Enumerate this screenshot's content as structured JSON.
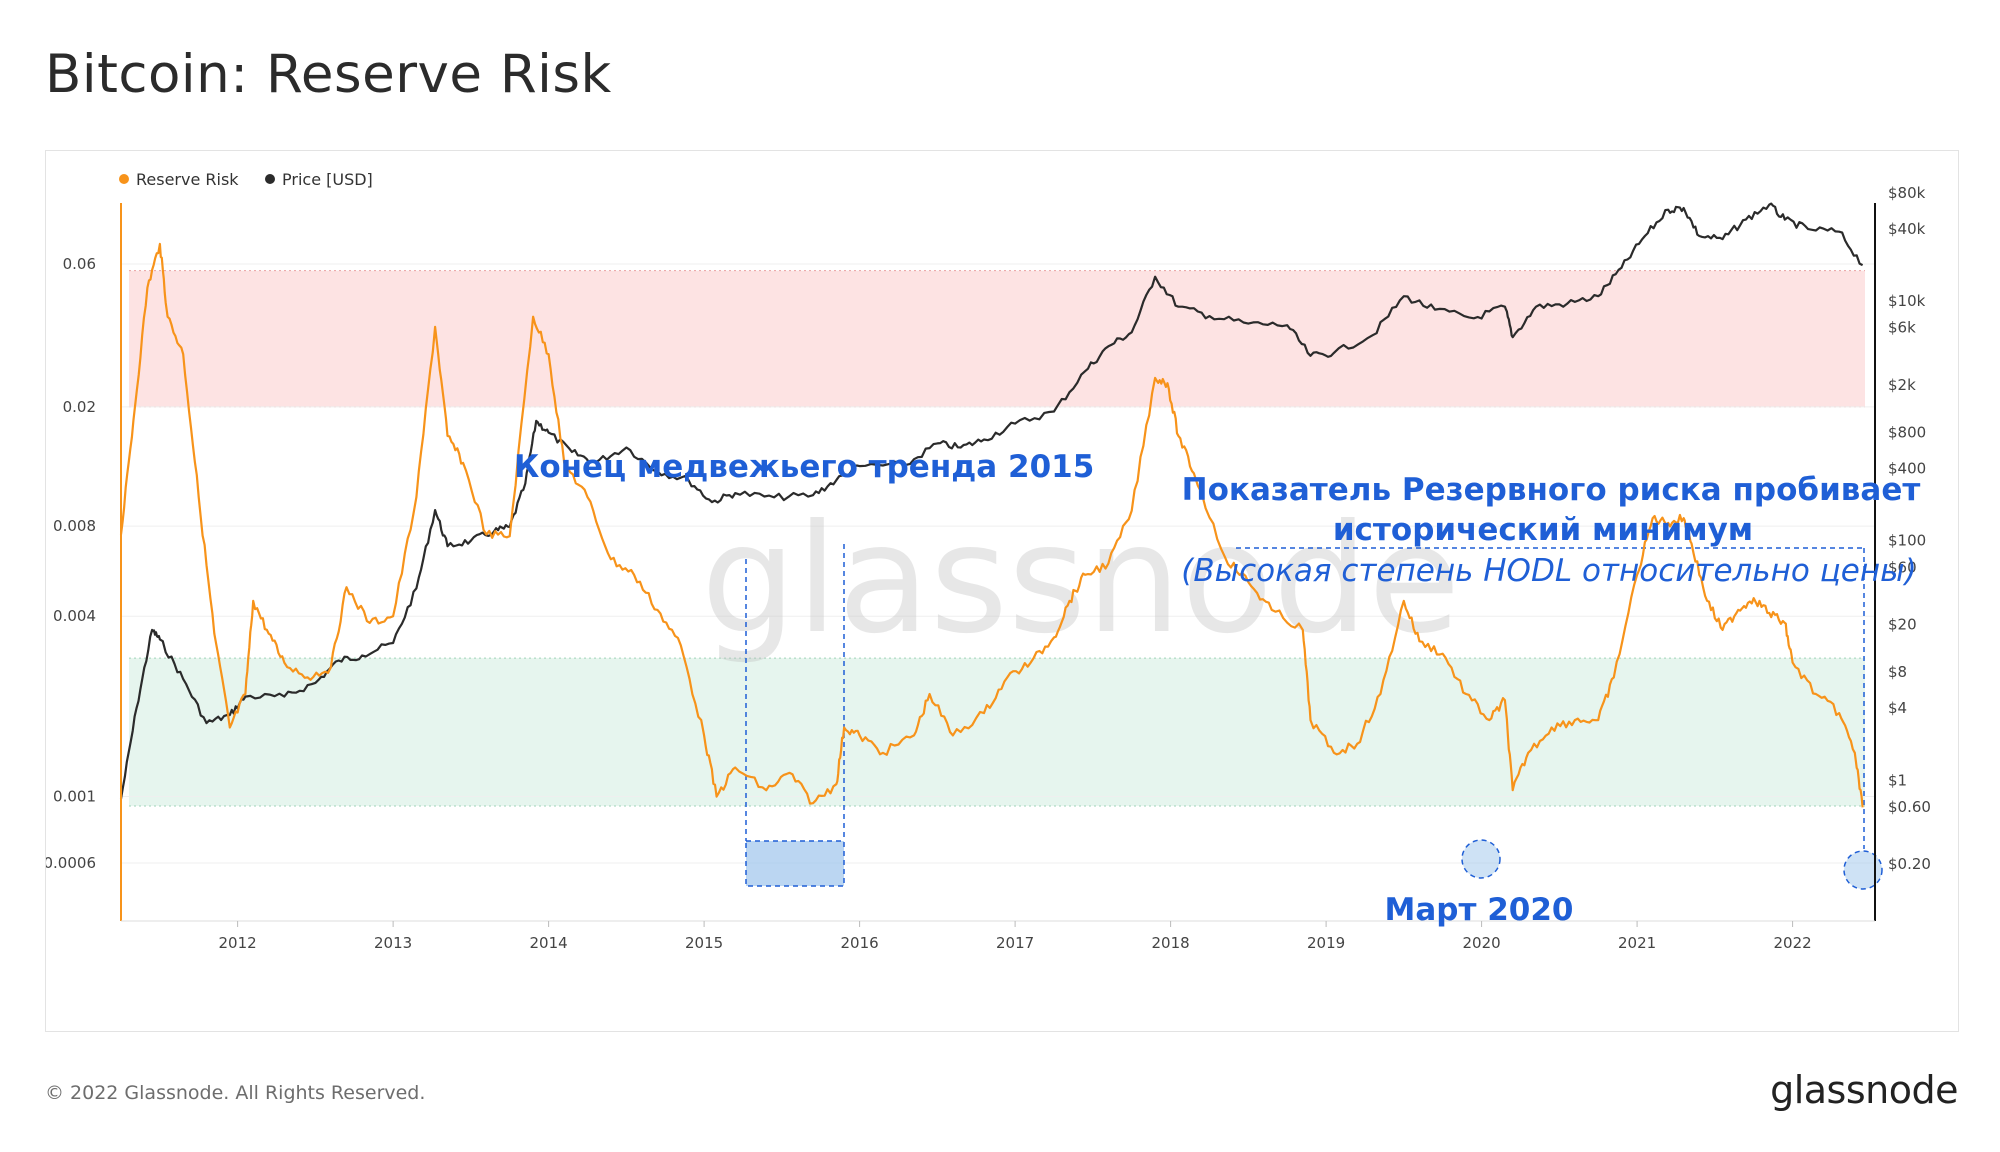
{
  "title": "Bitcoin: Reserve Risk",
  "footer": {
    "copyright": "© 2022 Glassnode. All Rights Reserved.",
    "logo": "glassnode"
  },
  "watermark": "glassnode",
  "colors": {
    "reserve_risk": "#f7931a",
    "price": "#2b2b2b",
    "annotation": "#1f5fd6",
    "red_band": "#fde3e3",
    "green_band": "#e6f5ee"
  },
  "chart_data": {
    "type": "line",
    "series": [
      {
        "name": "Reserve Risk",
        "axis": "left",
        "points": [
          [
            2011.25,
            0.0075
          ],
          [
            2011.33,
            0.018
          ],
          [
            2011.42,
            0.05
          ],
          [
            2011.5,
            0.07
          ],
          [
            2011.55,
            0.04
          ],
          [
            2011.65,
            0.03
          ],
          [
            2011.75,
            0.01
          ],
          [
            2011.85,
            0.0035
          ],
          [
            2011.95,
            0.0017
          ],
          [
            2012.05,
            0.0022
          ],
          [
            2012.1,
            0.0045
          ],
          [
            2012.2,
            0.0035
          ],
          [
            2012.3,
            0.0028
          ],
          [
            2012.45,
            0.0025
          ],
          [
            2012.6,
            0.0027
          ],
          [
            2012.7,
            0.005
          ],
          [
            2012.85,
            0.0038
          ],
          [
            2013.0,
            0.004
          ],
          [
            2013.15,
            0.01
          ],
          [
            2013.27,
            0.037
          ],
          [
            2013.35,
            0.016
          ],
          [
            2013.45,
            0.013
          ],
          [
            2013.6,
            0.0075
          ],
          [
            2013.75,
            0.0074
          ],
          [
            2013.9,
            0.04
          ],
          [
            2014.0,
            0.03
          ],
          [
            2014.1,
            0.013
          ],
          [
            2014.25,
            0.01
          ],
          [
            2014.4,
            0.0062
          ],
          [
            2014.55,
            0.0055
          ],
          [
            2014.7,
            0.0042
          ],
          [
            2014.85,
            0.0032
          ],
          [
            2015.0,
            0.0016
          ],
          [
            2015.08,
            0.001
          ],
          [
            2015.2,
            0.00125
          ],
          [
            2015.4,
            0.00105
          ],
          [
            2015.55,
            0.0012
          ],
          [
            2015.7,
            0.00095
          ],
          [
            2015.85,
            0.0011
          ],
          [
            2015.9,
            0.0017
          ],
          [
            2016.0,
            0.0016
          ],
          [
            2016.15,
            0.0014
          ],
          [
            2016.35,
            0.0016
          ],
          [
            2016.45,
            0.0022
          ],
          [
            2016.6,
            0.0016
          ],
          [
            2016.8,
            0.0019
          ],
          [
            2016.95,
            0.0025
          ],
          [
            2017.1,
            0.0028
          ],
          [
            2017.25,
            0.0034
          ],
          [
            2017.35,
            0.0045
          ],
          [
            2017.45,
            0.0055
          ],
          [
            2017.6,
            0.006
          ],
          [
            2017.75,
            0.009
          ],
          [
            2017.9,
            0.025
          ],
          [
            2017.98,
            0.024
          ],
          [
            2018.05,
            0.016
          ],
          [
            2018.15,
            0.012
          ],
          [
            2018.35,
            0.0063
          ],
          [
            2018.5,
            0.0052
          ],
          [
            2018.65,
            0.0042
          ],
          [
            2018.85,
            0.0036
          ],
          [
            2018.9,
            0.0018
          ],
          [
            2019.05,
            0.0014
          ],
          [
            2019.2,
            0.0015
          ],
          [
            2019.35,
            0.0022
          ],
          [
            2019.5,
            0.0045
          ],
          [
            2019.6,
            0.0033
          ],
          [
            2019.75,
            0.003
          ],
          [
            2019.9,
            0.0022
          ],
          [
            2020.05,
            0.0018
          ],
          [
            2020.15,
            0.0021
          ],
          [
            2020.2,
            0.00105
          ],
          [
            2020.3,
            0.0014
          ],
          [
            2020.45,
            0.0017
          ],
          [
            2020.6,
            0.0018
          ],
          [
            2020.75,
            0.0018
          ],
          [
            2020.85,
            0.0025
          ],
          [
            2021.0,
            0.0055
          ],
          [
            2021.1,
            0.0085
          ],
          [
            2021.2,
            0.0082
          ],
          [
            2021.3,
            0.0085
          ],
          [
            2021.35,
            0.007
          ],
          [
            2021.45,
            0.0045
          ],
          [
            2021.55,
            0.0036
          ],
          [
            2021.65,
            0.0042
          ],
          [
            2021.75,
            0.0046
          ],
          [
            2021.85,
            0.0041
          ],
          [
            2021.95,
            0.0038
          ],
          [
            2022.0,
            0.0028
          ],
          [
            2022.15,
            0.0022
          ],
          [
            2022.3,
            0.0019
          ],
          [
            2022.4,
            0.0014
          ],
          [
            2022.45,
            0.00092
          ]
        ]
      },
      {
        "name": "Price [USD]",
        "axis": "right",
        "points": [
          [
            2011.25,
            0.7
          ],
          [
            2011.35,
            4
          ],
          [
            2011.45,
            18
          ],
          [
            2011.5,
            15
          ],
          [
            2011.65,
            7
          ],
          [
            2011.8,
            3
          ],
          [
            2011.95,
            3.5
          ],
          [
            2012.05,
            5
          ],
          [
            2012.3,
            5
          ],
          [
            2012.5,
            6.5
          ],
          [
            2012.65,
            10
          ],
          [
            2012.8,
            11
          ],
          [
            2013.0,
            14
          ],
          [
            2013.15,
            40
          ],
          [
            2013.27,
            180
          ],
          [
            2013.35,
            90
          ],
          [
            2013.5,
            100
          ],
          [
            2013.65,
            120
          ],
          [
            2013.75,
            130
          ],
          [
            2013.85,
            300
          ],
          [
            2013.92,
            1000
          ],
          [
            2014.0,
            800
          ],
          [
            2014.15,
            550
          ],
          [
            2014.3,
            450
          ],
          [
            2014.5,
            600
          ],
          [
            2014.7,
            380
          ],
          [
            2014.9,
            320
          ],
          [
            2015.05,
            210
          ],
          [
            2015.2,
            250
          ],
          [
            2015.45,
            230
          ],
          [
            2015.7,
            240
          ],
          [
            2015.85,
            320
          ],
          [
            2016.0,
            420
          ],
          [
            2016.3,
            430
          ],
          [
            2016.5,
            650
          ],
          [
            2016.65,
            600
          ],
          [
            2016.8,
            700
          ],
          [
            2017.0,
            950
          ],
          [
            2017.25,
            1200
          ],
          [
            2017.45,
            2600
          ],
          [
            2017.6,
            4200
          ],
          [
            2017.75,
            5500
          ],
          [
            2017.9,
            16000
          ],
          [
            2018.05,
            9000
          ],
          [
            2018.25,
            7500
          ],
          [
            2018.5,
            6500
          ],
          [
            2018.75,
            6300
          ],
          [
            2018.9,
            3500
          ],
          [
            2019.05,
            3700
          ],
          [
            2019.3,
            5200
          ],
          [
            2019.5,
            11000
          ],
          [
            2019.7,
            8500
          ],
          [
            2019.95,
            7200
          ],
          [
            2020.15,
            9000
          ],
          [
            2020.2,
            5000
          ],
          [
            2020.35,
            9000
          ],
          [
            2020.55,
            9500
          ],
          [
            2020.75,
            11000
          ],
          [
            2020.9,
            19000
          ],
          [
            2021.05,
            35000
          ],
          [
            2021.2,
            58000
          ],
          [
            2021.3,
            60000
          ],
          [
            2021.4,
            35000
          ],
          [
            2021.55,
            33000
          ],
          [
            2021.7,
            48000
          ],
          [
            2021.85,
            64000
          ],
          [
            2021.95,
            48000
          ],
          [
            2022.1,
            40000
          ],
          [
            2022.3,
            38000
          ],
          [
            2022.45,
            20000
          ]
        ]
      }
    ],
    "x_ticks": [
      "2012",
      "2013",
      "2014",
      "2015",
      "2016",
      "2017",
      "2018",
      "2019",
      "2020",
      "2021",
      "2022"
    ],
    "y_left_ticks": [
      "0.06",
      "0.02",
      "0.008",
      "0.004",
      "0.001",
      "0.0006"
    ],
    "y_right_ticks": [
      "$80k",
      "$40k",
      "$10k",
      "$6k",
      "$2k",
      "$800",
      "$400",
      "$100",
      "$60",
      "$20",
      "$8",
      "$4",
      "$1",
      "$0.60",
      "$0.20"
    ],
    "y_left_scale": "log",
    "y_right_scale": "log",
    "bands": [
      {
        "color": "red",
        "from": 0.02,
        "to": 0.057
      },
      {
        "color": "green",
        "from": 0.00093,
        "to": 0.0029
      }
    ],
    "legend_placement": "top-left",
    "annotations": {
      "bear_end": "Конец медвежьего тренда 2015",
      "record_line1": "Показатель Резервного риска пробивает",
      "record_line2": "исторический минимум",
      "record_line3": "(Высокая степень HODL относительно цены)",
      "march2020": "Март 2020"
    }
  }
}
